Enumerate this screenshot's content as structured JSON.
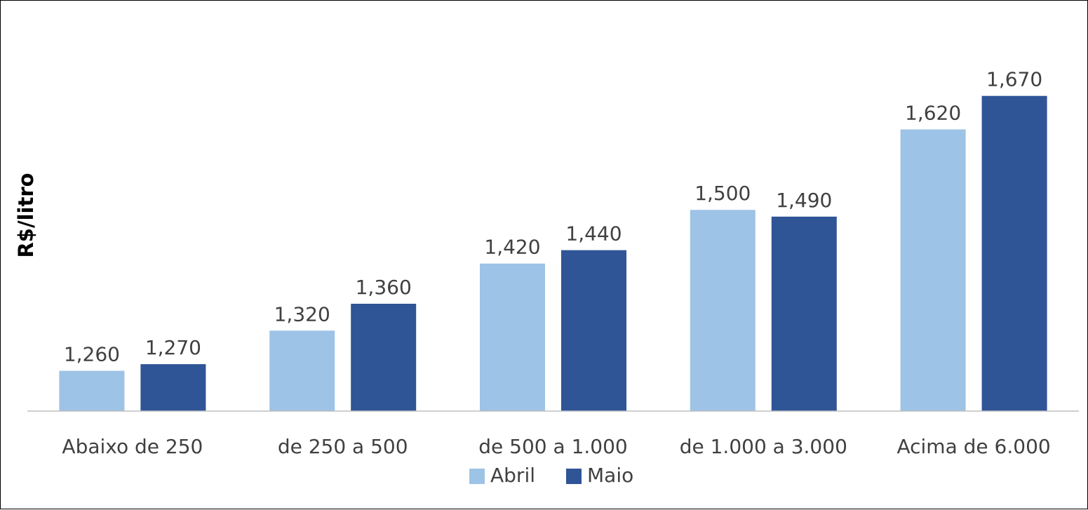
{
  "chart_data": {
    "type": "bar",
    "title": "",
    "xlabel": "",
    "ylabel": "R$/litro",
    "categories": [
      "Abaixo de 250",
      "de 250 a 500",
      "de 500 a 1.000",
      "de 1.000 a 3.000",
      "Acima de 6.000"
    ],
    "series": [
      {
        "name": "Abril",
        "color": "#9DC3E6",
        "values": [
          1.26,
          1.32,
          1.42,
          1.5,
          1.62
        ],
        "labels": [
          "1,260",
          "1,320",
          "1,420",
          "1,500",
          "1,620"
        ]
      },
      {
        "name": "Maio",
        "color": "#2F5597",
        "values": [
          1.27,
          1.36,
          1.44,
          1.49,
          1.67
        ],
        "labels": [
          "1,270",
          "1,360",
          "1,440",
          "1,490",
          "1,670"
        ]
      }
    ],
    "ylim": [
      1.2,
      1.7
    ],
    "grid": false,
    "legend_position": "bottom",
    "axis_color": "#BFBFBF"
  }
}
